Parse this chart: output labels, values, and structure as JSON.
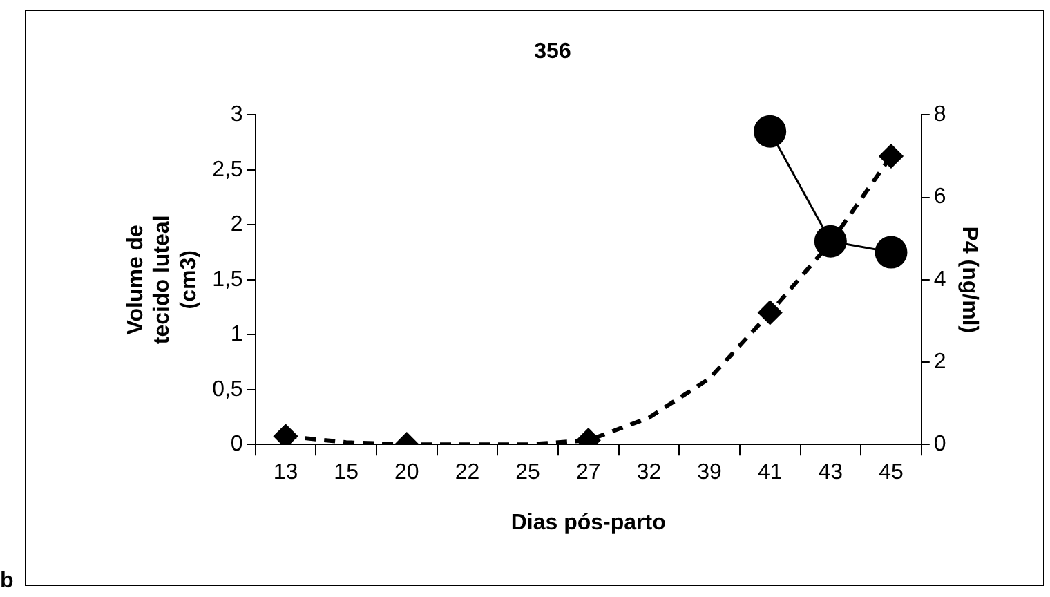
{
  "chart_data": {
    "type": "line",
    "title": "356",
    "xlabel": "Dias pós-parto",
    "ylabel": "Volume de tecido luteal (cm3)",
    "y2label": "P4 (ng/ml)",
    "categories": [
      "13",
      "15",
      "20",
      "22",
      "25",
      "27",
      "32",
      "39",
      "41",
      "43",
      "45"
    ],
    "series": [
      {
        "type": "line",
        "color": "#000000",
        "values": [
          null,
          null,
          null,
          null,
          null,
          null,
          null,
          null,
          2.85,
          1.85,
          1.75
        ],
        "marker": "circle",
        "line_style": "solid"
      },
      {
        "type": "scatter",
        "axis": "y2",
        "color": "#000000",
        "values": [
          0.2,
          null,
          0,
          null,
          null,
          0.1,
          null,
          null,
          3.2,
          null,
          7.0
        ],
        "marker": "diamond"
      },
      {
        "type": "line",
        "axis": "y2",
        "color": "#000000",
        "values": [
          0.2,
          0.05,
          0,
          0,
          0,
          0.1,
          0.65,
          1.6,
          3.2,
          4.9,
          7.0
        ],
        "marker": "none",
        "line_style": "dashed"
      }
    ],
    "ylim": [
      0,
      3
    ],
    "yticks": [
      0,
      {
        "value": 0.5,
        "label": "0,5"
      },
      1,
      {
        "value": 1.5,
        "label": "1,5"
      },
      2,
      {
        "value": 2.5,
        "label": "2,5"
      },
      3
    ],
    "y2lim": [
      0,
      8
    ],
    "y2ticks": [
      0,
      2,
      4,
      6,
      8
    ],
    "grid": false,
    "legend": false,
    "annotations": [
      "b"
    ]
  }
}
